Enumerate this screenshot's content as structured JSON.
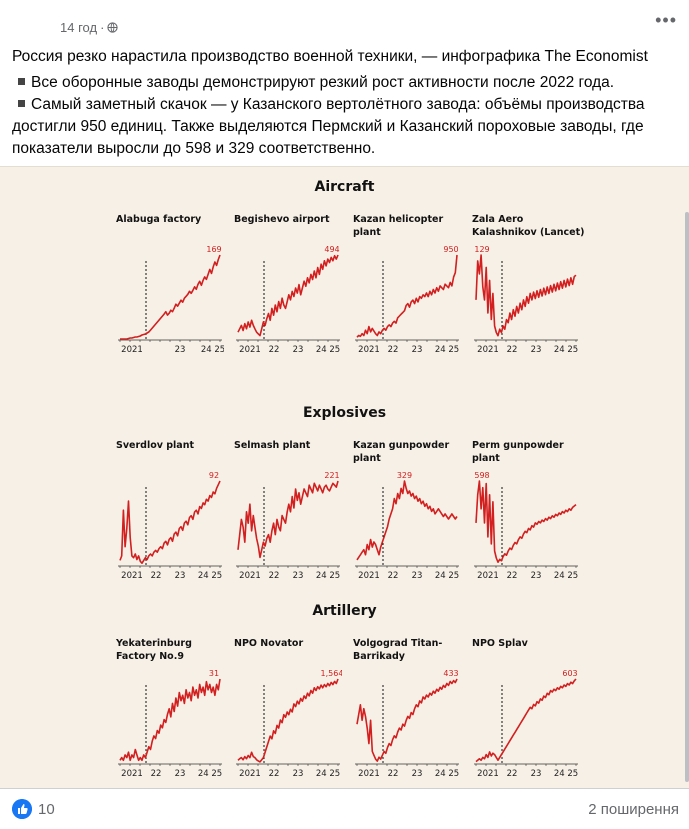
{
  "post": {
    "time": "14 год",
    "separator": "·",
    "more_label": "•••",
    "title": "Россия резко нарастила производство военной техники, — инфографика The Economist",
    "bullets": [
      "Все оборонные заводы демонстрируют резкий рост активности после 2022 года.",
      "Самый заметный скачок — у Казанского вертолётного завода: объёмы производства достигли 950 единиц. Также выделяются Пермский и Казанский пороховые заводы, где показатели выросли до 598 и 329 соответственно."
    ]
  },
  "footer": {
    "likes": "10",
    "shares": "2 поширення"
  },
  "colors": {
    "accent": "#1877f2",
    "line": "#d21f1f",
    "background_chart": "#f7f0e6"
  },
  "chart_data": [
    {
      "section": "Aircraft",
      "title": "Alabuga factory",
      "type": "line",
      "peak_label": "169",
      "peak_at": "end",
      "xticks": [
        "2021",
        "23",
        "24 25"
      ],
      "values": [
        0,
        0,
        0,
        0,
        0,
        1,
        2,
        2,
        3,
        4,
        4,
        5,
        6,
        8,
        9,
        10,
        12,
        14,
        18,
        22,
        26,
        30,
        34,
        38,
        42,
        46,
        50,
        55,
        48,
        52,
        58,
        55,
        62,
        70,
        66,
        72,
        78,
        74,
        82,
        86,
        90,
        96,
        92,
        98,
        105,
        100,
        110,
        116,
        108,
        118,
        125,
        120,
        130,
        140,
        132,
        145,
        155,
        148,
        160,
        169
      ]
    },
    {
      "section": "Aircraft",
      "title": "Begishevo airport",
      "type": "line",
      "peak_label": "494",
      "peak_at": "end",
      "xticks": [
        "2021",
        "22",
        "23",
        "24 25"
      ],
      "values": [
        40,
        60,
        80,
        50,
        90,
        60,
        100,
        70,
        110,
        80,
        60,
        40,
        30,
        20,
        60,
        100,
        80,
        120,
        150,
        110,
        180,
        140,
        200,
        160,
        220,
        180,
        240,
        200,
        180,
        220,
        260,
        230,
        280,
        250,
        300,
        270,
        320,
        260,
        300,
        340,
        310,
        360,
        330,
        380,
        350,
        400,
        360,
        420,
        380,
        440,
        410,
        460,
        430,
        470,
        450,
        480,
        460,
        490,
        470,
        494
      ]
    },
    {
      "section": "Aircraft",
      "title": "Kazan helicopter plant",
      "type": "line",
      "peak_label": "950",
      "peak_at": "end",
      "xticks": [
        "2021",
        "22",
        "23",
        "24 25"
      ],
      "values": [
        20,
        40,
        30,
        60,
        40,
        100,
        60,
        140,
        80,
        120,
        90,
        60,
        40,
        80,
        60,
        100,
        120,
        100,
        140,
        160,
        140,
        180,
        200,
        180,
        240,
        260,
        280,
        300,
        320,
        380,
        400,
        360,
        420,
        440,
        400,
        460,
        420,
        480,
        460,
        500,
        480,
        520,
        480,
        540,
        500,
        560,
        520,
        580,
        540,
        600,
        580,
        560,
        620,
        600,
        580,
        640,
        600,
        700,
        750,
        950
      ]
    },
    {
      "section": "Aircraft",
      "title": "Zala Aero Kalashnikov (Lancet)",
      "type": "line",
      "peak_label": "129",
      "peak_at": "start",
      "xticks": [
        "2021",
        "22",
        "23",
        "24 25"
      ],
      "values": [
        60,
        120,
        100,
        129,
        80,
        60,
        110,
        40,
        90,
        30,
        70,
        20,
        10,
        5,
        15,
        10,
        20,
        15,
        30,
        25,
        40,
        30,
        45,
        35,
        50,
        40,
        55,
        45,
        60,
        50,
        65,
        55,
        70,
        60,
        72,
        62,
        74,
        64,
        76,
        66,
        78,
        68,
        80,
        70,
        82,
        72,
        84,
        74,
        86,
        76,
        88,
        78,
        90,
        80,
        92,
        82,
        94,
        84,
        96,
        98
      ]
    },
    {
      "section": "Explosives",
      "title": "Sverdlov plant",
      "type": "line",
      "peak_label": "92",
      "peak_at": "end",
      "xticks": [
        "2021",
        "22",
        "23",
        "24 25"
      ],
      "values": [
        5,
        10,
        60,
        20,
        40,
        70,
        30,
        10,
        8,
        12,
        6,
        10,
        4,
        2,
        5,
        8,
        6,
        10,
        12,
        10,
        14,
        16,
        14,
        18,
        20,
        18,
        24,
        26,
        22,
        28,
        30,
        26,
        34,
        36,
        32,
        40,
        42,
        38,
        46,
        48,
        44,
        52,
        54,
        50,
        58,
        60,
        56,
        64,
        62,
        68,
        66,
        72,
        70,
        76,
        74,
        80,
        78,
        84,
        88,
        92
      ]
    },
    {
      "section": "Explosives",
      "title": "Selmash plant",
      "type": "line",
      "peak_label": "221",
      "peak_at": "end",
      "xticks": [
        "2021",
        "22",
        "23",
        "24 25"
      ],
      "values": [
        40,
        80,
        120,
        100,
        60,
        140,
        110,
        160,
        90,
        130,
        100,
        70,
        50,
        20,
        40,
        60,
        50,
        70,
        80,
        60,
        90,
        110,
        80,
        120,
        100,
        90,
        130,
        120,
        110,
        140,
        160,
        140,
        180,
        150,
        200,
        170,
        190,
        160,
        180,
        200,
        190,
        180,
        210,
        200,
        190,
        215,
        205,
        195,
        210,
        200,
        190,
        205,
        210,
        200,
        195,
        205,
        215,
        210,
        205,
        221
      ]
    },
    {
      "section": "Explosives",
      "title": "Kazan gunpowder plant",
      "type": "line",
      "peak_label": "329",
      "peak_at": "middle",
      "xticks": [
        "2021",
        "22",
        "23",
        "24 25"
      ],
      "values": [
        20,
        30,
        40,
        50,
        60,
        40,
        80,
        60,
        100,
        70,
        90,
        80,
        60,
        40,
        70,
        90,
        110,
        130,
        150,
        180,
        200,
        220,
        260,
        240,
        280,
        260,
        300,
        280,
        329,
        300,
        280,
        290,
        270,
        280,
        260,
        270,
        250,
        260,
        240,
        250,
        230,
        240,
        220,
        230,
        210,
        220,
        200,
        210,
        220,
        210,
        200,
        190,
        200,
        190,
        180,
        190,
        200,
        190,
        180,
        190
      ]
    },
    {
      "section": "Explosives",
      "title": "Perm gunpowder plant",
      "type": "line",
      "peak_label": "598",
      "peak_at": "start",
      "xticks": [
        "2021",
        "22",
        "23",
        "24 25"
      ],
      "values": [
        300,
        500,
        598,
        400,
        550,
        300,
        580,
        200,
        500,
        150,
        450,
        100,
        50,
        20,
        40,
        30,
        60,
        80,
        70,
        100,
        120,
        110,
        140,
        160,
        150,
        180,
        200,
        190,
        220,
        240,
        230,
        260,
        250,
        280,
        270,
        300,
        290,
        310,
        300,
        320,
        310,
        330,
        320,
        340,
        330,
        350,
        340,
        360,
        350,
        370,
        360,
        380,
        370,
        390,
        380,
        400,
        390,
        410,
        420,
        430
      ]
    },
    {
      "section": "Artillery",
      "title": "Yekaterinburg Factory No.9",
      "type": "line",
      "peak_label": "31",
      "peak_at": "end",
      "xticks": [
        "2021",
        "22",
        "23",
        "24 25"
      ],
      "values": [
        1,
        2,
        1,
        3,
        2,
        4,
        1,
        3,
        2,
        5,
        3,
        1,
        2,
        1,
        3,
        2,
        4,
        6,
        5,
        8,
        10,
        9,
        12,
        11,
        14,
        13,
        16,
        15,
        18,
        20,
        17,
        22,
        19,
        24,
        21,
        26,
        23,
        25,
        22,
        27,
        24,
        26,
        23,
        28,
        25,
        27,
        24,
        29,
        26,
        28,
        25,
        30,
        27,
        29,
        26,
        28,
        25,
        29,
        27,
        31
      ]
    },
    {
      "section": "Artillery",
      "title": "NPO Novator",
      "type": "line",
      "peak_label": "1,564",
      "peak_at": "end",
      "xticks": [
        "2021",
        "22",
        "23",
        "24 25"
      ],
      "values": [
        50,
        80,
        100,
        60,
        120,
        80,
        140,
        100,
        200,
        120,
        100,
        60,
        40,
        20,
        60,
        100,
        200,
        300,
        400,
        500,
        450,
        600,
        550,
        700,
        650,
        800,
        750,
        900,
        850,
        950,
        900,
        1000,
        950,
        1100,
        1050,
        1150,
        1100,
        1200,
        1150,
        1250,
        1200,
        1300,
        1250,
        1350,
        1300,
        1400,
        1350,
        1420,
        1380,
        1450,
        1400,
        1460,
        1420,
        1480,
        1440,
        1500,
        1460,
        1520,
        1480,
        1564
      ]
    },
    {
      "section": "Artillery",
      "title": "Volgograd Titan-Barrikady",
      "type": "line",
      "peak_label": "433",
      "peak_at": "end",
      "xticks": [
        "2021",
        "22",
        "23",
        "24 25"
      ],
      "values": [
        200,
        250,
        300,
        220,
        280,
        240,
        180,
        100,
        220,
        60,
        40,
        20,
        10,
        30,
        20,
        40,
        60,
        50,
        80,
        100,
        90,
        120,
        140,
        130,
        160,
        180,
        170,
        200,
        190,
        220,
        240,
        230,
        260,
        250,
        280,
        300,
        290,
        320,
        310,
        340,
        330,
        350,
        340,
        360,
        350,
        370,
        360,
        380,
        370,
        390,
        380,
        400,
        390,
        410,
        400,
        420,
        410,
        425,
        415,
        433
      ]
    },
    {
      "section": "Artillery",
      "title": "NPO Splav",
      "type": "line",
      "peak_label": "603",
      "peak_at": "end",
      "xticks": [
        "2021",
        "22",
        "23",
        "24 25"
      ],
      "values": [
        10,
        20,
        30,
        20,
        40,
        30,
        60,
        40,
        80,
        50,
        70,
        60,
        40,
        20,
        40,
        60,
        80,
        100,
        120,
        140,
        160,
        180,
        200,
        220,
        240,
        260,
        280,
        300,
        320,
        340,
        360,
        380,
        400,
        390,
        420,
        410,
        440,
        430,
        460,
        450,
        480,
        470,
        500,
        490,
        520,
        510,
        530,
        520,
        540,
        530,
        550,
        540,
        560,
        550,
        570,
        560,
        580,
        570,
        590,
        603
      ]
    }
  ],
  "sections": [
    "Aircraft",
    "Explosives",
    "Artillery"
  ]
}
